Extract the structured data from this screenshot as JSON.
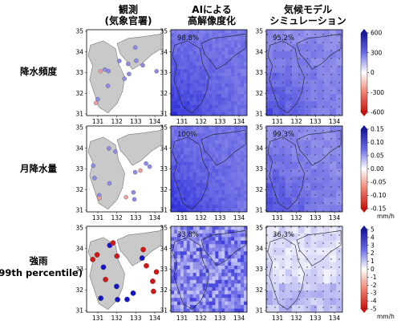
{
  "columns": [
    {
      "id": "obs",
      "lines": [
        "観測",
        "(気象官署)"
      ]
    },
    {
      "id": "ai",
      "lines": [
        "AIによる",
        "高解像度化"
      ]
    },
    {
      "id": "model",
      "lines": [
        "気候モデル",
        "シミュレーション"
      ]
    }
  ],
  "rows": [
    {
      "id": "freq",
      "lines": [
        "降水頻度"
      ]
    },
    {
      "id": "monthly",
      "lines": [
        "月降水量"
      ]
    },
    {
      "id": "heavy",
      "lines": [
        "強雨",
        "(99th percentile)"
      ]
    }
  ],
  "axes": {
    "y_ticks": [
      "35",
      "34",
      "33",
      "32",
      "31"
    ],
    "x_ticks": [
      "131",
      "132",
      "133",
      "134"
    ]
  },
  "chart_data": {
    "type": "heatmap",
    "panels": [
      {
        "row": "freq",
        "column": "ai",
        "percentage": "98.8%"
      },
      {
        "row": "freq",
        "column": "model",
        "percentage": "95.2%"
      },
      {
        "row": "monthly",
        "column": "ai",
        "percentage": "100%"
      },
      {
        "row": "monthly",
        "column": "model",
        "percentage": "99.3%"
      },
      {
        "row": "heavy",
        "column": "ai",
        "percentage": "33.8%"
      },
      {
        "row": "heavy",
        "column": "model",
        "percentage": "36.3%"
      }
    ],
    "colorbars": [
      {
        "row": "freq",
        "ticks": [
          "600",
          "300",
          "0",
          "-300",
          "-600"
        ],
        "unit": ""
      },
      {
        "row": "monthly",
        "ticks": [
          "0.15",
          "0.10",
          "0.05",
          "0.00",
          "-0.05",
          "-0.10",
          "-0.15"
        ],
        "unit": "mm/h"
      },
      {
        "row": "heavy",
        "ticks": [
          "5",
          "4",
          "3",
          "2",
          "1",
          "0",
          "-1",
          "-2",
          "-3",
          "-4",
          "-5"
        ],
        "unit": "mm/h"
      }
    ],
    "colors": {
      "positive": "#1f1fd0",
      "zero": "#ffffff",
      "negative": "#e0201a"
    }
  }
}
